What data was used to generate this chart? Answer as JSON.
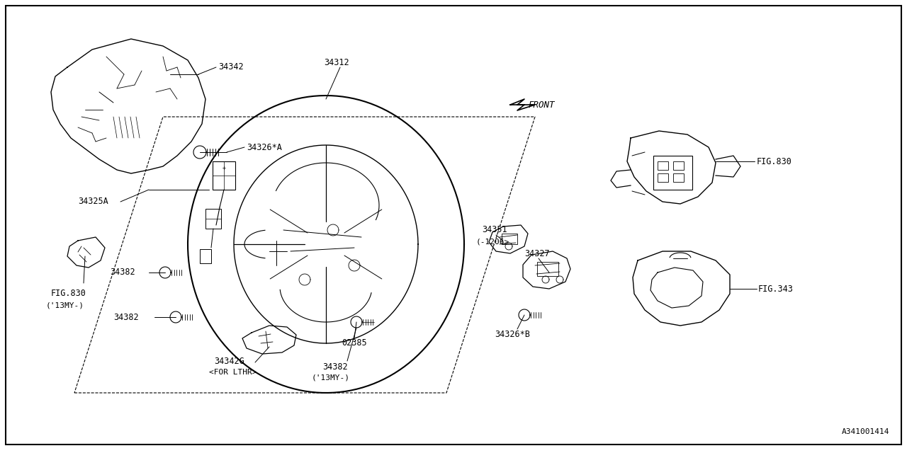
{
  "bg_color": "#ffffff",
  "line_color": "#000000",
  "text_color": "#000000",
  "fig_ref": "A341001414",
  "figsize": [
    12.8,
    6.4
  ],
  "dpi": 100,
  "xlim": [
    0,
    1280
  ],
  "ylim": [
    0,
    640
  ]
}
